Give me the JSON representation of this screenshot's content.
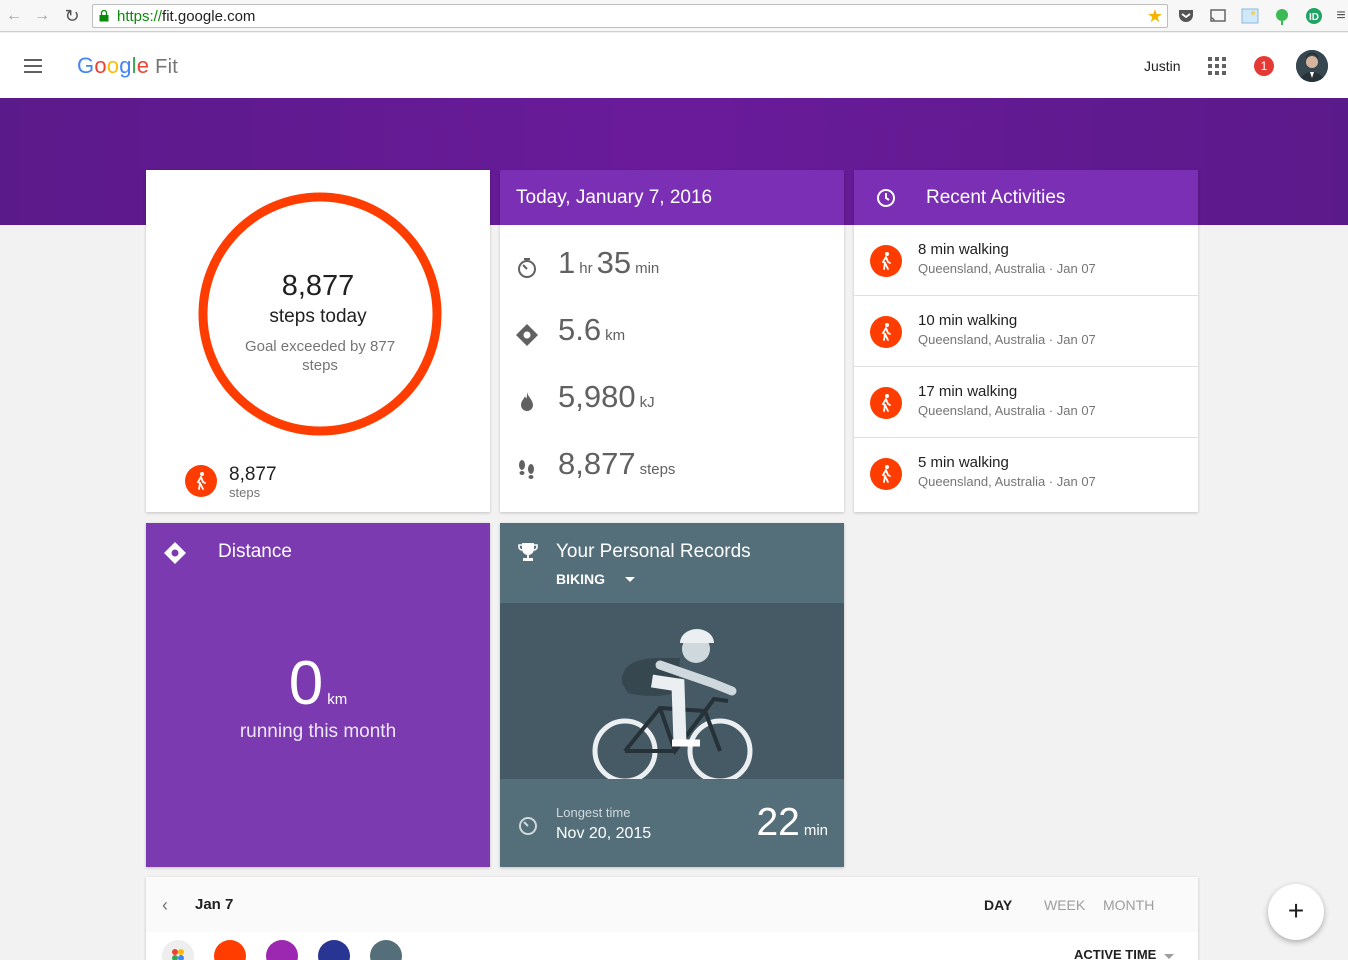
{
  "browser": {
    "url_proto": "https://",
    "url_host": "fit.google.com"
  },
  "header": {
    "logo_google": "Google",
    "logo_fit": "Fit",
    "username": "Justin",
    "notification_count": "1"
  },
  "steps_card": {
    "steps": "8,877",
    "steps_label": "steps today",
    "goal_text": "Goal exceeded by 877 steps",
    "foot_steps": "8,877",
    "foot_label": "steps",
    "ring_color": "#ff3d00"
  },
  "today_card": {
    "title": "Today, January 7, 2016",
    "active_hr": "1",
    "hr_unit": "hr",
    "active_min": "35",
    "min_unit": "min",
    "distance": "5.6",
    "distance_unit": "km",
    "energy": "5,980",
    "energy_unit": "kJ",
    "steps": "8,877",
    "steps_unit": "steps"
  },
  "recent_card": {
    "title": "Recent Activities",
    "items": [
      {
        "title": "8 min walking",
        "subtitle": "Queensland, Australia · Jan 07"
      },
      {
        "title": "10 min walking",
        "subtitle": "Queensland, Australia · Jan 07"
      },
      {
        "title": "17 min walking",
        "subtitle": "Queensland, Australia · Jan 07"
      },
      {
        "title": "5 min walking",
        "subtitle": "Queensland, Australia · Jan 07"
      }
    ]
  },
  "distance_card": {
    "title": "Distance",
    "value": "0",
    "unit": "km",
    "label": "running this month",
    "color": "#7b3ab0"
  },
  "records_card": {
    "title": "Your Personal Records",
    "sport": "BIKING",
    "label": "Longest time",
    "date": "Nov 20, 2015",
    "value": "22",
    "unit": "min"
  },
  "timeline": {
    "date": "Jan 7",
    "tabs": [
      "DAY",
      "WEEK",
      "MONTH"
    ],
    "active_label": "ACTIVE TIME"
  },
  "fab_label": "+"
}
